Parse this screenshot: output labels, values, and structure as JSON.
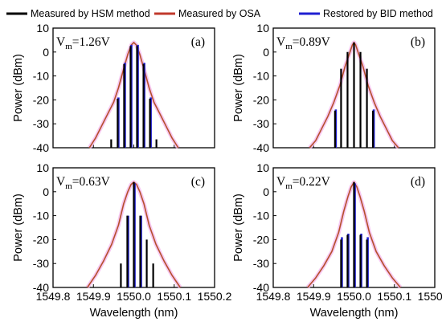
{
  "legend": [
    {
      "label": "Measured by HSM method",
      "color": "#000000"
    },
    {
      "label": "Measured by OSA",
      "color": "#c0392b"
    },
    {
      "label": "Restored by BID method",
      "color": "#1f1fd1"
    }
  ],
  "chart_data": [
    {
      "type": "bar",
      "panel": "(a)",
      "annotation": {
        "prefix": "V",
        "sub": "m",
        "value": "=1.26V"
      },
      "ylabel": "Power (dBm)",
      "xlabel": "",
      "xlim": [
        1549.8,
        1550.2
      ],
      "ylim": [
        -40,
        10
      ],
      "yticks": [
        10,
        0,
        -10,
        -20,
        -30,
        -40
      ],
      "xticks": [
        1549.8,
        1549.9,
        1550.0,
        1550.1,
        1550.2
      ],
      "xticklabels": [],
      "hsm": {
        "x": [
          1549.944,
          1549.96,
          1549.976,
          1549.992,
          1550.008,
          1550.024,
          1550.04,
          1550.056
        ],
        "y": [
          -36.5,
          -19.5,
          -5.0,
          2.5,
          2.5,
          -5.0,
          -19.5,
          -36.5
        ]
      },
      "bid": {
        "x": [
          1549.962,
          1549.978,
          1549.994,
          1550.01,
          1550.026,
          1550.042
        ],
        "y": [
          -19.0,
          -4.5,
          3.0,
          3.0,
          -4.5,
          -19.0
        ]
      },
      "osa": {
        "x": [
          1549.89,
          1549.905,
          1549.92,
          1549.935,
          1549.95,
          1549.962,
          1549.975,
          1549.985,
          1549.994,
          1550.0,
          1550.006,
          1550.015,
          1550.025,
          1550.038,
          1550.05,
          1550.065,
          1550.08,
          1550.095,
          1550.11
        ],
        "y": [
          -40,
          -36,
          -31,
          -26,
          -21,
          -15,
          -7,
          -1,
          3,
          4,
          3,
          -1,
          -7,
          -15,
          -21,
          -26,
          -31,
          -36,
          -40
        ]
      }
    },
    {
      "type": "bar",
      "panel": "(b)",
      "annotation": {
        "prefix": "V",
        "sub": "m",
        "value": "=0.89V"
      },
      "ylabel": "Power (dBm)",
      "xlabel": "",
      "xlim": [
        1549.8,
        1550.2
      ],
      "ylim": [
        -40,
        10
      ],
      "yticks": [
        10,
        0,
        -10,
        -20,
        -30,
        -40
      ],
      "xticks": [
        1549.8,
        1549.9,
        1550.0,
        1550.1,
        1550.2
      ],
      "xticklabels": [],
      "hsm": {
        "x": [
          1549.953,
          1549.968,
          1549.984,
          1550.0,
          1550.016,
          1550.032,
          1550.047
        ],
        "y": [
          -24.5,
          -7.0,
          0.0,
          4.0,
          0.0,
          -7.0,
          -24.5
        ]
      },
      "bid": {
        "x": [
          1549.955,
          1550.049
        ],
        "y": [
          -24.0,
          -24.0
        ]
      },
      "osa": {
        "x": [
          1549.89,
          1549.905,
          1549.92,
          1549.935,
          1549.95,
          1549.965,
          1549.978,
          1549.988,
          1549.996,
          1550.0,
          1550.004,
          1550.012,
          1550.022,
          1550.035,
          1550.05,
          1550.065,
          1550.08,
          1550.095,
          1550.11
        ],
        "y": [
          -40,
          -37,
          -32,
          -27,
          -21,
          -14,
          -6,
          -1,
          3,
          4,
          3,
          -1,
          -6,
          -14,
          -21,
          -27,
          -32,
          -37,
          -40
        ]
      }
    },
    {
      "type": "bar",
      "panel": "(c)",
      "annotation": {
        "prefix": "V",
        "sub": "m",
        "value": "=0.63V"
      },
      "ylabel": "Power (dBm)",
      "xlabel": "Wavelength (nm)",
      "xlim": [
        1549.8,
        1550.2
      ],
      "ylim": [
        -40,
        10
      ],
      "yticks": [
        10,
        0,
        -10,
        -20,
        -30,
        -40
      ],
      "xticks": [
        1549.8,
        1549.9,
        1550.0,
        1550.1,
        1550.2
      ],
      "xticklabels": [
        "1549.8",
        "1549.9",
        "1550.0",
        "1550.1",
        "1550.2"
      ],
      "hsm": {
        "x": [
          1549.968,
          1549.984,
          1550.0,
          1550.016,
          1550.032,
          1550.048
        ],
        "y": [
          -30.0,
          -10.0,
          4.0,
          -10.0,
          -20.0,
          -30.0
        ]
      },
      "bid": {
        "x": [
          1549.986,
          1550.002,
          1550.018
        ],
        "y": [
          -10.0,
          3.5,
          -10.0
        ]
      },
      "osa": {
        "x": [
          1549.885,
          1549.905,
          1549.925,
          1549.945,
          1549.962,
          1549.975,
          1549.985,
          1549.993,
          1550.0,
          1550.007,
          1550.015,
          1550.025,
          1550.038,
          1550.055,
          1550.075,
          1550.095,
          1550.115
        ],
        "y": [
          -40,
          -35,
          -29,
          -22,
          -14,
          -5,
          0,
          3,
          4,
          3,
          0,
          -5,
          -14,
          -22,
          -29,
          -35,
          -40
        ]
      }
    },
    {
      "type": "bar",
      "panel": "(d)",
      "annotation": {
        "prefix": "V",
        "sub": "m",
        "value": "=0.22V"
      },
      "ylabel": "Power (dBm)",
      "xlabel": "Wavelength (nm)",
      "xlim": [
        1549.8,
        1550.2
      ],
      "ylim": [
        -40,
        10
      ],
      "yticks": [
        10,
        0,
        -10,
        -20,
        -30,
        -40
      ],
      "xticks": [
        1549.8,
        1549.9,
        1550.0,
        1550.1,
        1550.2
      ],
      "xticklabels": [
        "1549.8",
        "1549.9",
        "1550.0",
        "1550.1",
        "1550.2"
      ],
      "hsm": {
        "x": [
          1549.968,
          1549.984,
          1550.0,
          1550.016,
          1550.032
        ],
        "y": [
          -20.0,
          -18.0,
          4.0,
          -18.0,
          -20.0
        ]
      },
      "bid": {
        "x": [
          1549.97,
          1549.986,
          1550.002,
          1550.018,
          1550.034
        ],
        "y": [
          -19.0,
          -17.5,
          3.5,
          -17.5,
          -19.0
        ]
      },
      "osa": {
        "x": [
          1549.885,
          1549.905,
          1549.925,
          1549.945,
          1549.962,
          1549.975,
          1549.985,
          1549.993,
          1550.0,
          1550.007,
          1550.015,
          1550.025,
          1550.038,
          1550.055,
          1550.075,
          1550.095,
          1550.115
        ],
        "y": [
          -40,
          -36,
          -31,
          -25,
          -17,
          -8,
          -2,
          2,
          4,
          2,
          -2,
          -8,
          -17,
          -25,
          -31,
          -36,
          -40
        ]
      }
    }
  ]
}
